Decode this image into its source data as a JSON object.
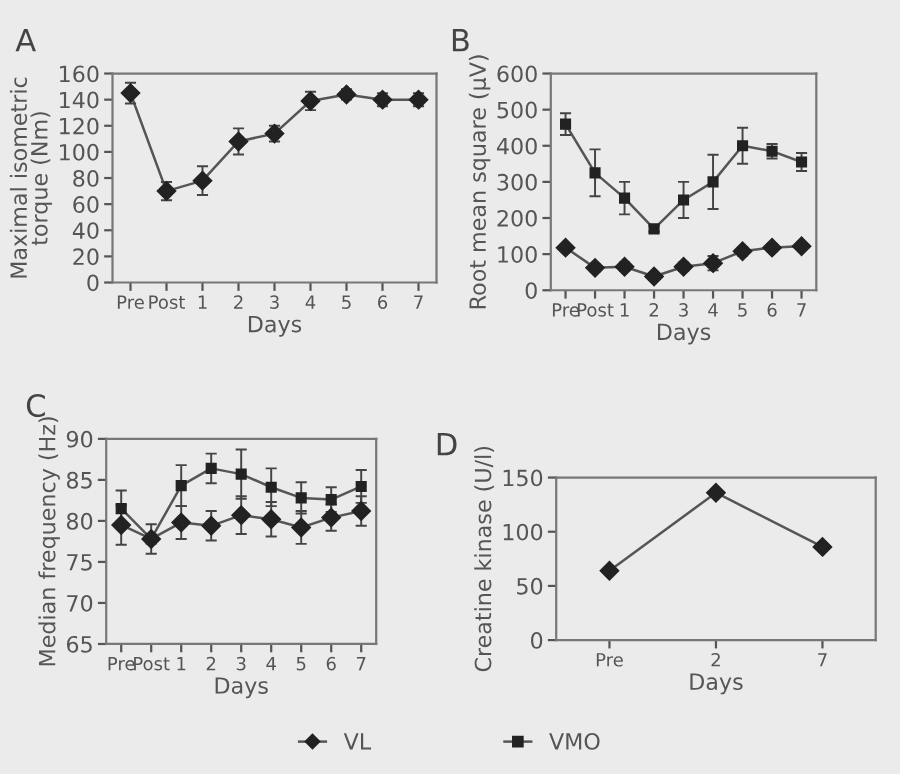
{
  "chart_data": [
    {
      "type": "line",
      "title": "A",
      "xlabel": "Days",
      "ylabel": "Maximal isometric\ntorque (Nm)",
      "categories": [
        "Pre",
        "Post",
        "1",
        "2",
        "3",
        "4",
        "5",
        "6",
        "7"
      ],
      "ylim": [
        0,
        160
      ],
      "yticks": [
        0,
        20,
        40,
        60,
        80,
        100,
        120,
        140,
        160
      ],
      "marker": "diamond",
      "grid": false,
      "series": [
        {
          "color": "#222222",
          "values": [
            145,
            70,
            78,
            108,
            114,
            139,
            144,
            140,
            140
          ],
          "errors": [
            8,
            7,
            11,
            10,
            6,
            7,
            4,
            5,
            5
          ]
        }
      ]
    },
    {
      "type": "line",
      "title": "B",
      "xlabel": "Days",
      "ylabel": "Root mean square (μV)",
      "categories": [
        "Pre",
        "Post",
        "1",
        "2",
        "3",
        "4",
        "5",
        "6",
        "7"
      ],
      "ylim": [
        0,
        600
      ],
      "yticks": [
        0,
        100,
        200,
        300,
        400,
        500,
        600
      ],
      "grid": false,
      "legend": "bottom",
      "series": [
        {
          "name": "VL",
          "marker": "diamond",
          "color": "#222222",
          "values": [
            118,
            62,
            65,
            38,
            65,
            75,
            108,
            118,
            122
          ],
          "errors": [
            8,
            10,
            12,
            8,
            12,
            20,
            12,
            10,
            8
          ]
        },
        {
          "name": "VMO",
          "marker": "square",
          "color": "#222222",
          "values": [
            460,
            325,
            255,
            170,
            250,
            300,
            400,
            385,
            355
          ],
          "errors": [
            30,
            65,
            45,
            8,
            50,
            75,
            50,
            20,
            25
          ]
        }
      ]
    },
    {
      "type": "line",
      "title": "C",
      "xlabel": "Days",
      "ylabel": "Median frequency (Hz)",
      "categories": [
        "Pre",
        "Post",
        "1",
        "2",
        "3",
        "4",
        "5",
        "6",
        "7"
      ],
      "ylim": [
        65,
        90
      ],
      "yticks": [
        65,
        70,
        75,
        80,
        85,
        90
      ],
      "grid": false,
      "series": [
        {
          "name": "VL",
          "marker": "diamond",
          "color": "#222222",
          "values": [
            79.5,
            77.8,
            79.8,
            79.4,
            80.7,
            80.2,
            79.2,
            80.4,
            81.2
          ],
          "errors": [
            2.4,
            1.8,
            2,
            1.8,
            2.3,
            2.1,
            2,
            1.6,
            1.8
          ]
        },
        {
          "name": "VMO",
          "marker": "square",
          "color": "#222222",
          "values": [
            81.5,
            77.8,
            84.3,
            86.4,
            85.7,
            84.1,
            82.8,
            82.6,
            84.2
          ],
          "errors": [
            2.2,
            null,
            2.5,
            1.8,
            3,
            2.3,
            1.9,
            1.5,
            2
          ]
        }
      ]
    },
    {
      "type": "line",
      "title": "D",
      "xlabel": "Days",
      "ylabel": "Creatine kinase (U/l)",
      "categories": [
        "Pre",
        "2",
        "7"
      ],
      "ylim": [
        0,
        150
      ],
      "yticks": [
        0,
        50,
        100,
        150
      ],
      "marker": "diamond",
      "grid": false,
      "series": [
        {
          "color": "#222222",
          "values": [
            64,
            136,
            86
          ]
        }
      ]
    }
  ]
}
